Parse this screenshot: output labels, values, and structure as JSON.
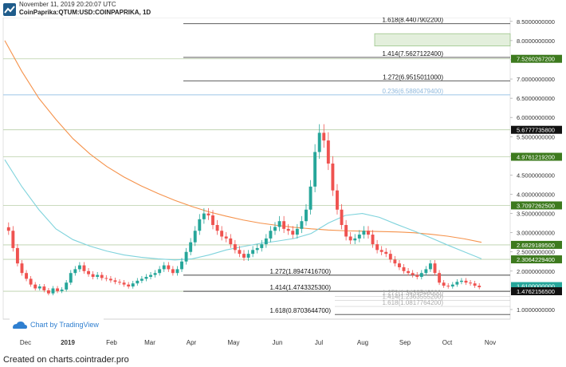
{
  "header": {
    "date": "November 11, 2019 20:20:07 UTC",
    "symbol": "CoinPaprika:QTUM:USD:COINPAPRIKA, 1D"
  },
  "footer": "Created on charts.cointrader.pro",
  "watermark": "Chart by TradingView",
  "colors": {
    "up": "#26a69a",
    "down": "#ef5350",
    "ma_orange": "#f5924b",
    "ma_blue": "#7fd3dc",
    "fib_line": "#555555",
    "fib_light": "#9ec5e8",
    "green_tag": "#3d7a1e",
    "teal_tag": "#26a69a",
    "black_tag": "#111111"
  },
  "chart_data": {
    "type": "candlestick",
    "ylim": [
      0.75,
      8.6
    ],
    "y_ticks": [
      "8.5000000000",
      "8.0000000000",
      "7.5000000000",
      "7.0000000000",
      "6.5000000000",
      "6.0000000000",
      "5.5000000000",
      "5.0000000000",
      "4.5000000000",
      "4.0000000000",
      "3.5000000000",
      "3.0000000000",
      "2.5000000000",
      "2.0000000000",
      "1.5000000000",
      "1.0000000000"
    ],
    "x_ticks": [
      "Dec",
      "2019",
      "Feb",
      "Mar",
      "Apr",
      "May",
      "Jun",
      "Jul",
      "Aug",
      "Sep",
      "Oct",
      "Nov"
    ],
    "price_tags": [
      {
        "label": "7.5260267200",
        "value": 7.526,
        "style": "green"
      },
      {
        "label": "5.6777735800",
        "value": 5.678,
        "style": "black"
      },
      {
        "label": "4.9761219200",
        "value": 4.976,
        "style": "green"
      },
      {
        "label": "3.7097262500",
        "value": 3.71,
        "style": "green"
      },
      {
        "label": "2.6829189500",
        "value": 2.683,
        "style": "green"
      },
      {
        "label": "2.3064229400",
        "value": 2.306,
        "style": "green"
      },
      {
        "label": "1.6100000000",
        "value": 1.61,
        "style": "teal"
      },
      {
        "label": "1.4762156500",
        "value": 1.476,
        "style": "black"
      }
    ],
    "fib_levels": [
      {
        "label": "1.618(8.4407902200)",
        "value": 8.441,
        "style": "dark"
      },
      {
        "label": "1.414(7.5627122400)",
        "value": 7.563,
        "style": "dark"
      },
      {
        "label": "1.272(6.9515011000)",
        "value": 6.952,
        "style": "dark"
      },
      {
        "label": "0.236(6.5880479400)",
        "value": 6.588,
        "style": "light"
      },
      {
        "label": "1.272(1.8947416700)",
        "value": 1.895,
        "style": "dark"
      },
      {
        "label": "1.414(1.4743325300)",
        "value": 1.474,
        "style": "dark"
      },
      {
        "label": "1.272(1.3439546000)",
        "value": 1.344,
        "style": "faint"
      },
      {
        "label": "1.414(1.2363555200)",
        "value": 1.236,
        "style": "faint"
      },
      {
        "label": "1.618(1.0817764200)",
        "value": 1.082,
        "style": "faint"
      },
      {
        "label": "1.618(0.8703644700)",
        "value": 0.87,
        "style": "dark"
      }
    ],
    "horizontal_levels": [
      7.526,
      5.678,
      4.976,
      3.71,
      2.683,
      2.306,
      1.476
    ],
    "highlight_box": {
      "from": 7.86,
      "to": 8.18
    },
    "closes": [
      3.05,
      2.6,
      2.2,
      1.95,
      1.8,
      1.65,
      1.55,
      1.6,
      1.5,
      1.42,
      1.55,
      1.48,
      1.52,
      1.7,
      1.95,
      2.05,
      2.15,
      2.0,
      1.92,
      1.85,
      1.9,
      1.82,
      1.8,
      1.76,
      1.72,
      1.7,
      1.65,
      1.6,
      1.68,
      1.75,
      1.8,
      1.85,
      1.9,
      1.95,
      2.05,
      2.15,
      2.05,
      1.95,
      2.05,
      2.25,
      2.5,
      2.75,
      3.05,
      3.35,
      3.5,
      3.45,
      3.2,
      3.05,
      2.9,
      2.85,
      2.7,
      2.55,
      2.45,
      2.35,
      2.45,
      2.55,
      2.6,
      2.7,
      2.85,
      3.05,
      3.15,
      3.3,
      3.1,
      3.05,
      2.95,
      3.1,
      3.3,
      3.6,
      4.2,
      5.1,
      5.6,
      5.4,
      4.8,
      4.1,
      3.6,
      3.2,
      2.9,
      2.8,
      2.85,
      2.95,
      3.05,
      2.95,
      2.7,
      2.55,
      2.5,
      2.45,
      2.3,
      2.2,
      2.1,
      2.0,
      1.95,
      1.9,
      1.85,
      1.95,
      2.05,
      2.2,
      1.95,
      1.7,
      1.62,
      1.6,
      1.65,
      1.72,
      1.75,
      1.7,
      1.68,
      1.62,
      1.58
    ],
    "ma_orange": [
      8.0,
      7.2,
      6.5,
      5.95,
      5.45,
      5.05,
      4.72,
      4.45,
      4.22,
      4.02,
      3.84,
      3.68,
      3.54,
      3.43,
      3.33,
      3.25,
      3.19,
      3.14,
      3.1,
      3.07,
      3.05,
      3.04,
      3.03,
      3.02,
      3.0,
      2.96,
      2.91,
      2.84,
      2.75
    ],
    "ma_blue": [
      4.9,
      4.2,
      3.6,
      3.1,
      2.82,
      2.65,
      2.52,
      2.42,
      2.36,
      2.32,
      2.29,
      2.32,
      2.42,
      2.55,
      2.64,
      2.72,
      2.78,
      2.85,
      2.98,
      3.25,
      3.45,
      3.5,
      3.4,
      3.22,
      3.05,
      2.87,
      2.68,
      2.5,
      2.32
    ]
  }
}
